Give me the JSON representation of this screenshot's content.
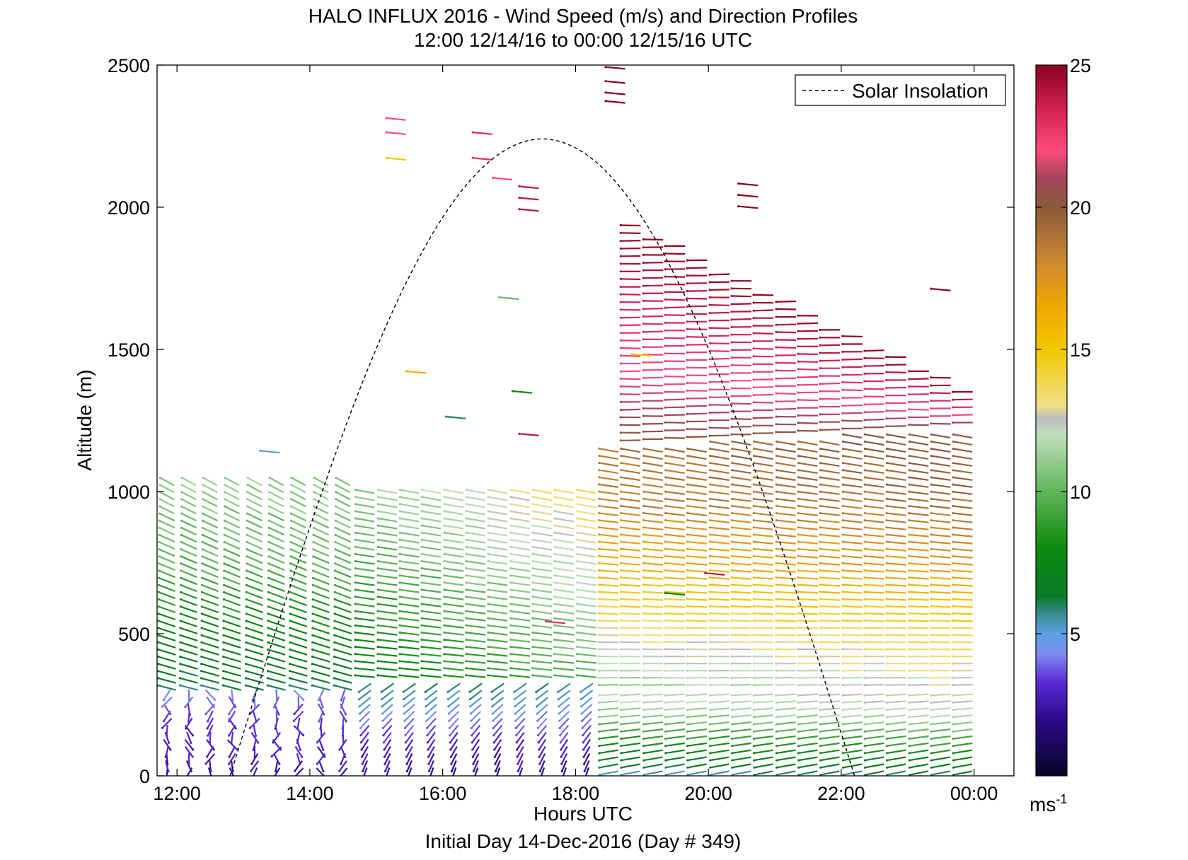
{
  "chart_data": {
    "type": "scatter",
    "title": "HALO INFLUX 2016 - Wind Speed (m/s) and Direction Profiles",
    "subtitle": "12:00 12/14/16 to 00:00 12/15/16  UTC",
    "xlabel": "Hours UTC",
    "ylabel": "Altitude (m)",
    "footer": "Initial Day 14-Dec-2016 (Day # 349)",
    "xlim": [
      11.7,
      24.6
    ],
    "ylim": [
      0,
      2500
    ],
    "x_ticks": [
      12,
      14,
      16,
      18,
      20,
      22,
      24
    ],
    "x_tick_labels": [
      "12:00",
      "14:00",
      "16:00",
      "18:00",
      "20:00",
      "22:00",
      "00:00"
    ],
    "y_ticks": [
      0,
      500,
      1000,
      1500,
      2000,
      2500
    ],
    "y_tick_labels": [
      "0",
      "500",
      "1000",
      "1500",
      "2000",
      "2500"
    ],
    "grid": false,
    "legend": {
      "position": "top-right",
      "entries": [
        "Solar Insolation"
      ]
    },
    "solar_insolation": {
      "start_hour": 12.8,
      "peak_hour": 17.5,
      "end_hour": 22.2,
      "peak_altitude": 2240,
      "style": "dashed",
      "color": "#000000"
    },
    "colorbar": {
      "range": [
        0,
        25
      ],
      "ticks": [
        5,
        10,
        15,
        20,
        25
      ],
      "tick_labels": [
        "5",
        "10",
        "15",
        "20",
        "25"
      ],
      "unit_label": "ms",
      "unit_exponent": "-1",
      "stops": [
        {
          "v": 0,
          "c": "#060626"
        },
        {
          "v": 2,
          "c": "#2b0a8a"
        },
        {
          "v": 3.3,
          "c": "#5a2bd6"
        },
        {
          "v": 4.3,
          "c": "#7f8df0"
        },
        {
          "v": 5,
          "c": "#5aa0e0"
        },
        {
          "v": 5.6,
          "c": "#3f8fa0"
        },
        {
          "v": 6.3,
          "c": "#0a7a2a"
        },
        {
          "v": 8,
          "c": "#0c8a0c"
        },
        {
          "v": 10,
          "c": "#5fb65a"
        },
        {
          "v": 12,
          "c": "#bfe0bb"
        },
        {
          "v": 12.6,
          "c": "#bdbdbd"
        },
        {
          "v": 13,
          "c": "#f0e08a"
        },
        {
          "v": 15,
          "c": "#f0c800"
        },
        {
          "v": 16.5,
          "c": "#f0a800"
        },
        {
          "v": 18,
          "c": "#d08a30"
        },
        {
          "v": 20,
          "c": "#8a5a3a"
        },
        {
          "v": 21,
          "c": "#a0445a"
        },
        {
          "v": 22,
          "c": "#ff4a80"
        },
        {
          "v": 23.5,
          "c": "#d02050"
        },
        {
          "v": 25,
          "c": "#8a0020"
        }
      ]
    },
    "series": [
      {
        "barb_times": [
          11.85,
          12.18,
          12.5,
          12.83,
          13.17,
          13.5,
          13.83,
          14.17,
          14.5,
          14.83,
          15.17,
          15.5,
          15.83,
          16.17,
          16.5,
          16.83,
          17.17,
          17.5,
          17.83,
          18.17,
          18.5,
          18.83,
          19.17,
          19.5,
          19.83,
          20.17,
          20.5,
          20.83,
          21.17,
          21.5,
          21.83,
          22.17,
          22.5,
          22.83,
          23.17,
          23.5,
          23.83
        ],
        "profiles": [
          {
            "alt_range": [
              0,
              290
            ],
            "speed": [
              2.5,
              3,
              4
            ],
            "dir_deg": 200
          },
          {
            "alt_range": [
              300,
              1040
            ],
            "speed": [
              6,
              8,
              10,
              11
            ],
            "dir_deg": 300
          },
          {
            "alt_range": [
              0,
              330
            ],
            "speed": [
              2,
              3,
              4.5,
              6
            ],
            "dir_deg": 200
          },
          {
            "alt_range": [
              340,
              1000
            ],
            "speed": [
              7,
              9,
              11
            ],
            "dir_deg": 285
          },
          {
            "alt_range": [
              0,
              330
            ],
            "speed": [
              3,
              5,
              7,
              9
            ],
            "dir_deg": 250
          },
          {
            "alt_range": [
              340,
              1150
            ],
            "speed": [
              9,
              13,
              16,
              18,
              19
            ],
            "dir_deg": 275
          },
          {
            "alt_range": [
              1150,
              1950
            ],
            "speed": [
              20,
              22,
              24
            ],
            "dir_deg": 270
          },
          {
            "alt_range": [
              0,
              300
            ],
            "speed": [
              6,
              8,
              10,
              11
            ],
            "dir_deg": 260
          },
          {
            "alt_range": [
              300,
              1300
            ],
            "speed": [
              14,
              17,
              19,
              21
            ],
            "dir_deg": 280
          },
          {
            "alt_range": [
              1300,
              1760
            ],
            "speed": [
              22,
              23,
              24
            ],
            "dir_deg": 270
          }
        ],
        "isolated_barbs": [
          {
            "time": 15.3,
            "alt": 2310,
            "speed": 22
          },
          {
            "time": 15.3,
            "alt": 2260,
            "speed": 22
          },
          {
            "time": 15.3,
            "alt": 2170,
            "speed": 15
          },
          {
            "time": 15.6,
            "alt": 1420,
            "speed": 16
          },
          {
            "time": 16.6,
            "alt": 2260,
            "speed": 23
          },
          {
            "time": 16.6,
            "alt": 2170,
            "speed": 23
          },
          {
            "time": 16.9,
            "alt": 2100,
            "speed": 22
          },
          {
            "time": 17.3,
            "alt": 2070,
            "speed": 24
          },
          {
            "time": 17.3,
            "alt": 2030,
            "speed": 24
          },
          {
            "time": 17.3,
            "alt": 1990,
            "speed": 24
          },
          {
            "time": 18.6,
            "alt": 2490,
            "speed": 25
          },
          {
            "time": 18.6,
            "alt": 2440,
            "speed": 25
          },
          {
            "time": 18.6,
            "alt": 2400,
            "speed": 25
          },
          {
            "time": 18.6,
            "alt": 2370,
            "speed": 25
          },
          {
            "time": 20.6,
            "alt": 2080,
            "speed": 25
          },
          {
            "time": 20.6,
            "alt": 2040,
            "speed": 25
          },
          {
            "time": 20.6,
            "alt": 2000,
            "speed": 25
          },
          {
            "time": 17.0,
            "alt": 1680,
            "speed": 10
          },
          {
            "time": 17.2,
            "alt": 1350,
            "speed": 8
          },
          {
            "time": 16.2,
            "alt": 1260,
            "speed": 6
          },
          {
            "time": 13.4,
            "alt": 1140,
            "speed": 5
          },
          {
            "time": 17.3,
            "alt": 1200,
            "speed": 24
          },
          {
            "time": 19.0,
            "alt": 1480,
            "speed": 15
          },
          {
            "time": 19.5,
            "alt": 640,
            "speed": 8
          },
          {
            "time": 20.1,
            "alt": 710,
            "speed": 24
          },
          {
            "time": 17.7,
            "alt": 540,
            "speed": 23
          },
          {
            "time": 23.5,
            "alt": 1710,
            "speed": 25
          }
        ]
      }
    ]
  }
}
